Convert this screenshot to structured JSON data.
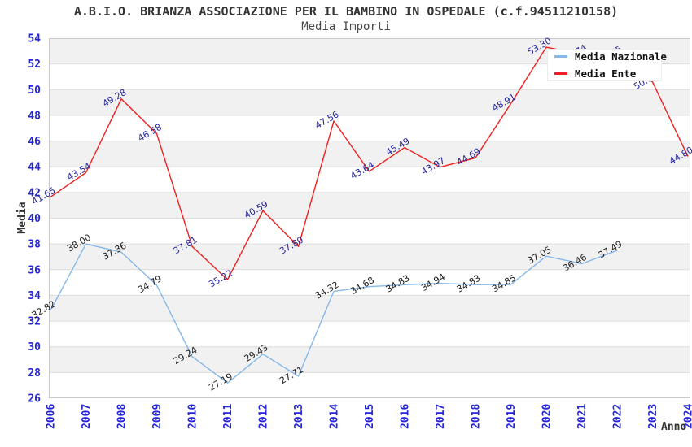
{
  "chart": {
    "title": "A.B.I.O. BRIANZA ASSOCIAZIONE PER IL BAMBINO IN OSPEDALE (c.f.94511210158)",
    "subtitle": "Media Importi",
    "y_axis_label": "Media",
    "x_axis_label": "Anno",
    "legend": {
      "position": "top-right",
      "items": [
        {
          "label": "Media Nazionale",
          "color": "#85b8e8"
        },
        {
          "label": "Media Ente",
          "color": "#ee2020"
        }
      ]
    },
    "colors": {
      "axis_tick_labels": "#2424d9",
      "gridlines": "#dcdcdc",
      "stripe_band": "#f1f1f1",
      "plot_border": "#c9c9c9",
      "title_text": "#333333",
      "nazionale_line": "#85b8e8",
      "ente_line": "#ee2020",
      "nazionale_data_labels": "#1a1a1a",
      "ente_data_labels": "#24249c"
    }
  },
  "chart_data": {
    "type": "line",
    "x": [
      2006,
      2007,
      2008,
      2009,
      2010,
      2011,
      2012,
      2013,
      2014,
      2015,
      2016,
      2017,
      2018,
      2019,
      2020,
      2021,
      2022,
      2023,
      2024
    ],
    "ylim": [
      26,
      54
    ],
    "ytick_step": 2,
    "grid": "horizontal",
    "background": "alternating-2-unit-stripes",
    "legend_position": "top-right",
    "series": [
      {
        "name": "Media Nazionale",
        "color": "#85b8e8",
        "label_color": "#1a1a1a",
        "values": [
          32.82,
          38.0,
          37.36,
          34.79,
          29.24,
          27.19,
          29.43,
          27.71,
          34.32,
          34.68,
          34.83,
          34.94,
          34.83,
          34.85,
          37.05,
          36.46,
          37.49,
          null,
          null
        ]
      },
      {
        "name": "Media Ente",
        "color": "#ee2020",
        "label_color": "#24249c",
        "values": [
          41.65,
          43.54,
          49.28,
          46.58,
          37.81,
          35.22,
          40.59,
          37.8,
          47.56,
          43.64,
          45.49,
          43.97,
          44.69,
          48.91,
          53.3,
          52.74,
          52.65,
          50.6,
          44.8
        ],
        "labels_hidden_behind_legend_years": [
          2021,
          2022,
          2023
        ],
        "note": "2021-2023 labels are covered by the legend box in the source image; those three values are estimated from the visible line position."
      }
    ]
  }
}
